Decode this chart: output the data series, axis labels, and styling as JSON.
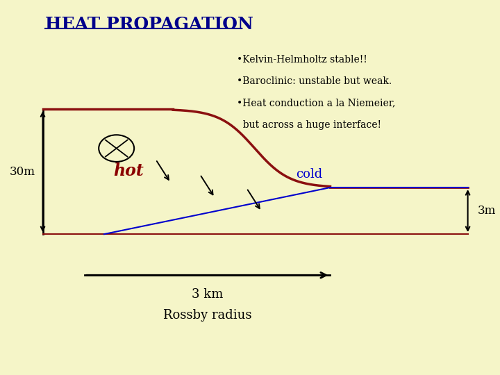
{
  "title": "HEAT PROPAGATION",
  "background_color": "#f5f5c8",
  "title_color": "#00008B",
  "title_fontsize": 18,
  "bullet_lines": [
    "•Kelvin-Helmholtz stable!!",
    "•Baroclinic: unstable but weak.",
    "•Heat conduction a la Niemeier,",
    "  but across a huge interface!"
  ],
  "label_30m": "30m",
  "label_3m": "3m",
  "label_3km": "3 km",
  "label_rossby": "Rossby radius",
  "label_hot": "hot",
  "label_cold": "cold",
  "hot_color": "#8B0000",
  "cold_color": "#0000CD",
  "interface_color": "#8B1010",
  "black": "#000000"
}
